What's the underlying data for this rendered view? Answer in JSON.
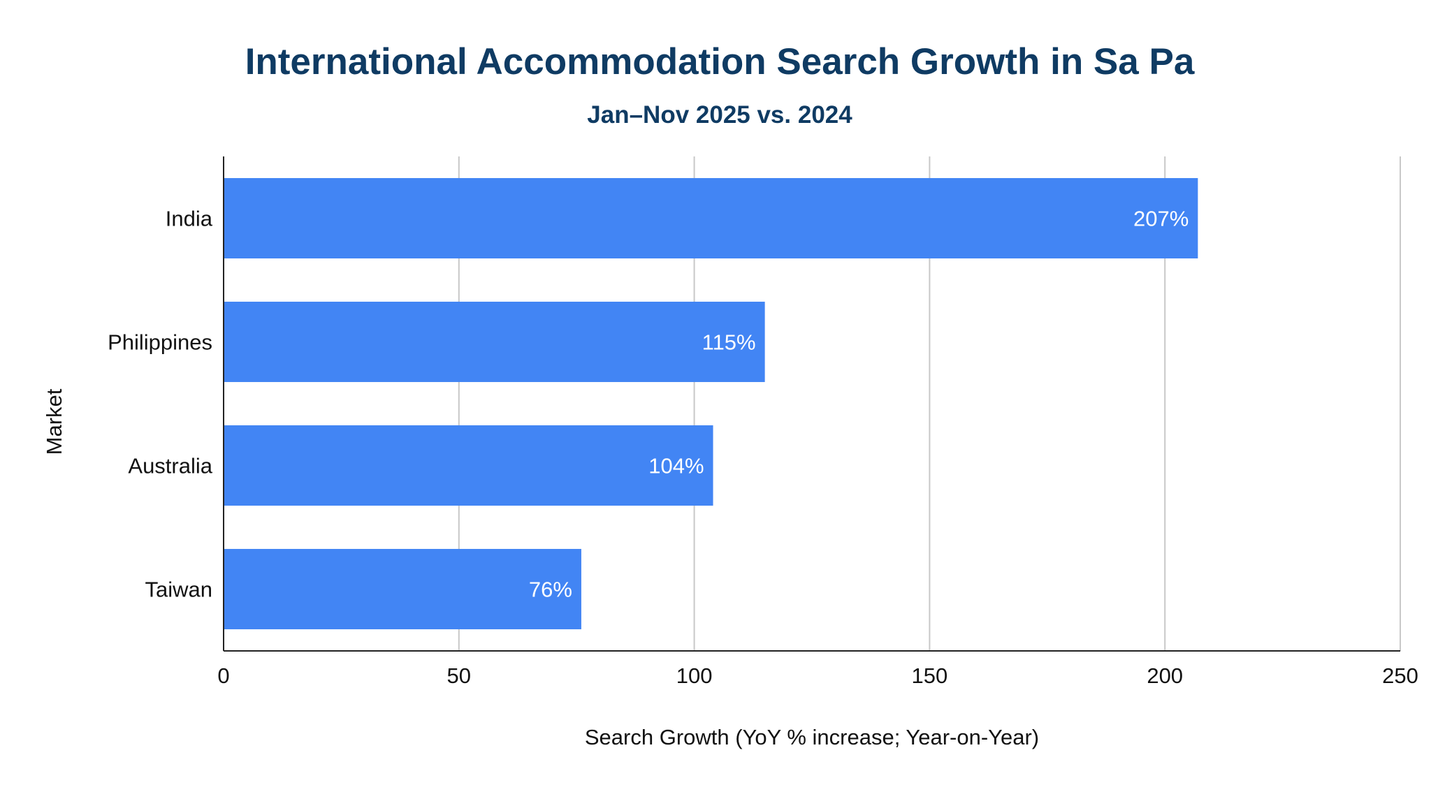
{
  "chart_data": {
    "type": "bar",
    "orientation": "horizontal",
    "title": "International Accommodation Search Growth in Sa Pa",
    "subtitle": "Jan–Nov 2025 vs. 2024",
    "xlabel": "Search Growth (YoY % increase; Year-on-Year)",
    "ylabel": "Market",
    "categories": [
      "India",
      "Philippines",
      "Australia",
      "Taiwan"
    ],
    "values": [
      207,
      115,
      104,
      76
    ],
    "data_labels": [
      "207%",
      "115%",
      "104%",
      "76%"
    ],
    "xlim": [
      0,
      250
    ],
    "xticks": [
      0,
      50,
      100,
      150,
      200,
      250
    ],
    "xtick_labels": [
      "0",
      "50",
      "100",
      "150",
      "200",
      "250"
    ],
    "grid": "vertical",
    "legend": "none",
    "bar_color": "#4285f4",
    "title_color": "#0f3b63"
  }
}
